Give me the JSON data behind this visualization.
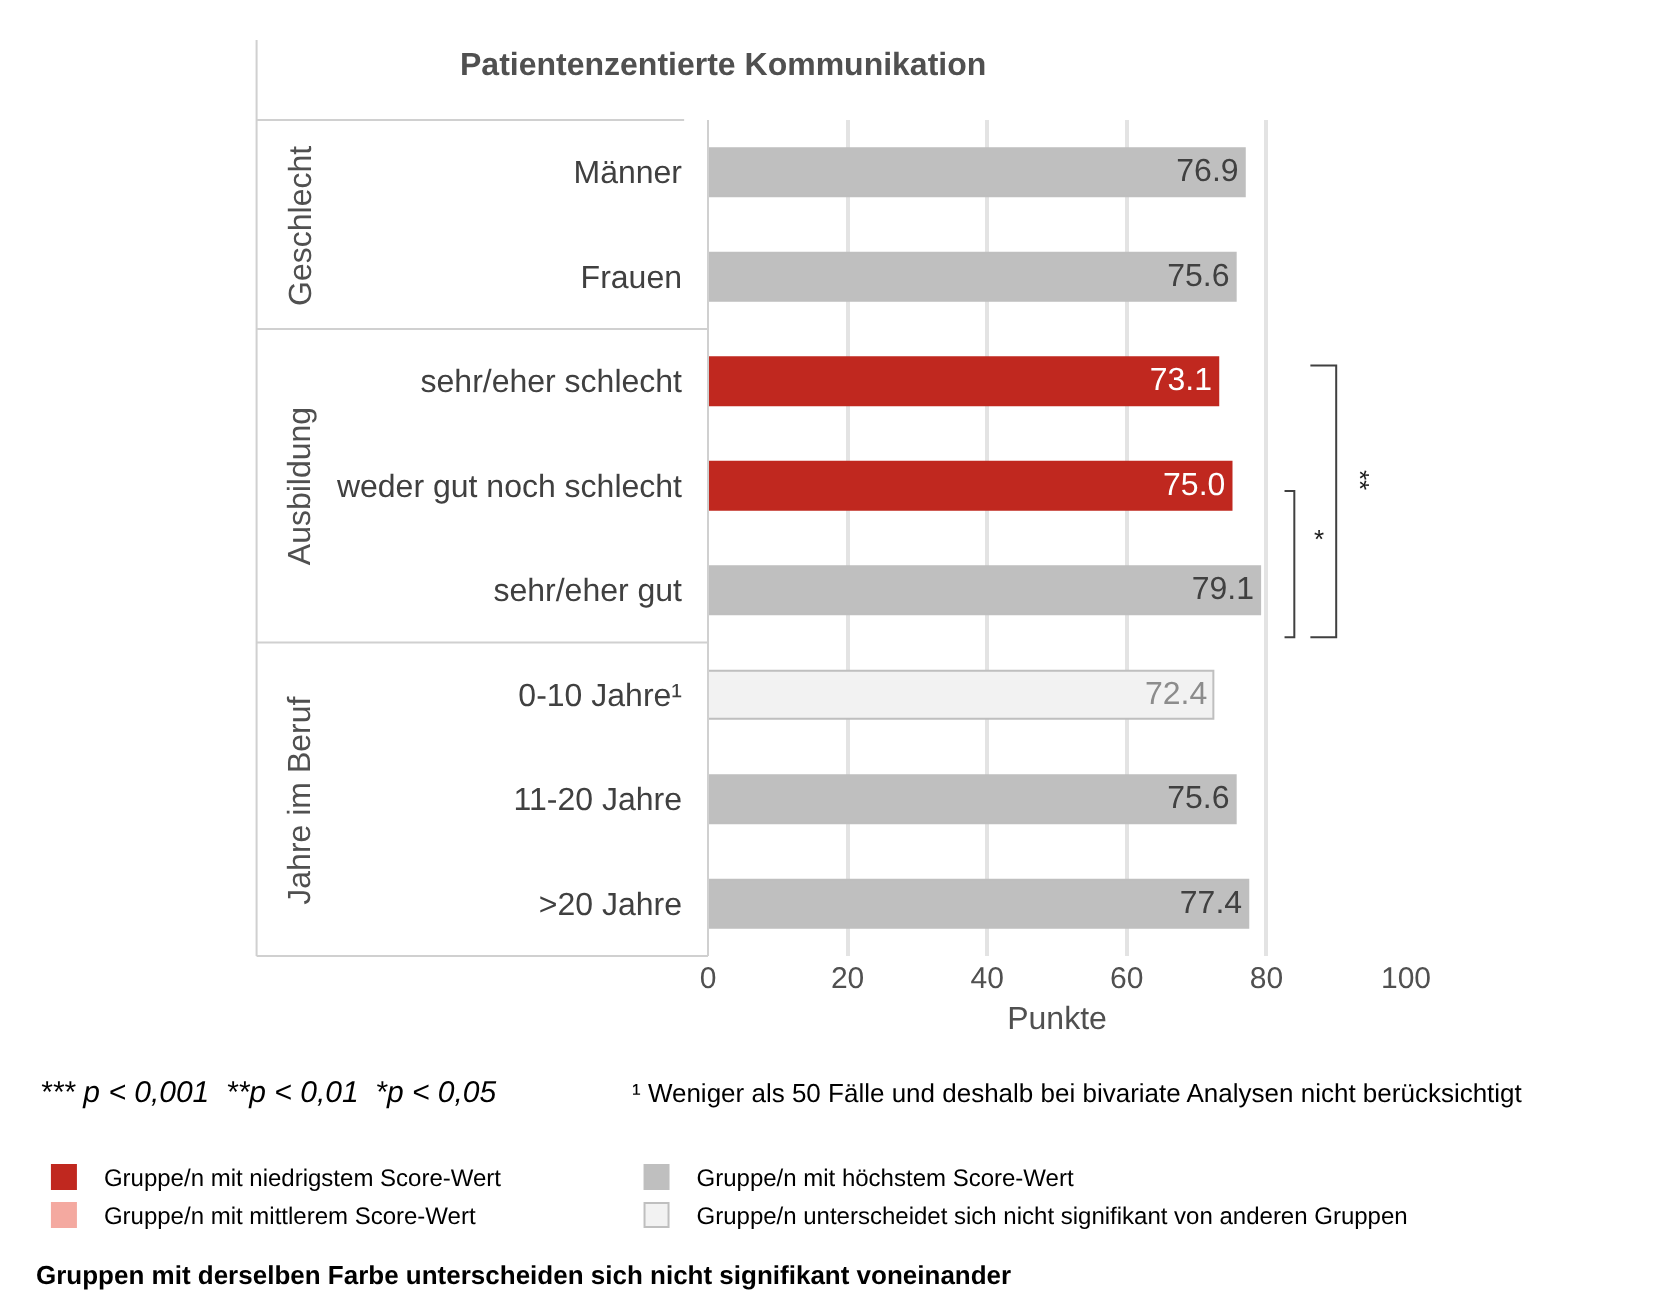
{
  "chart_data": {
    "type": "bar",
    "orientation": "horizontal",
    "title": "Patientenzentierte Kommunikation",
    "xlabel": "Punkte",
    "categories": [
      "Männer",
      "Frauen",
      "sehr/eher schlecht",
      "weder gut noch schlecht",
      "sehr/eher gut",
      "0-10 Jahre¹",
      "11-20 Jahre",
      ">20 Jahre"
    ],
    "series": [
      {
        "name": "Gruppe/n mit niedrigstem Score-Wert",
        "color": "#c0281f",
        "values": [
          null,
          null,
          73.1,
          75.0,
          null,
          null,
          null,
          null
        ],
        "value_labels": [
          null,
          null,
          "73.1",
          "75.0",
          null,
          null,
          null,
          null
        ]
      },
      {
        "name": "Gruppe/n mit höchstem Score-Wert",
        "color": "#bfbfbf",
        "values": [
          76.9,
          75.6,
          null,
          null,
          79.1,
          null,
          75.6,
          77.4
        ]
      },
      {
        "name": "Gruppe/n mit mittlerem Score-Wert",
        "color": "#f4a9a0",
        "values": [
          null,
          null,
          null,
          null,
          null,
          null,
          null,
          null
        ]
      },
      {
        "name": "Gruppe/n unterscheidet sich nicht signifikant von anderen Gruppen",
        "color": "#f2f2f2",
        "values": [
          null,
          null,
          null,
          null,
          null,
          72.4,
          null,
          null
        ]
      }
    ],
    "xlim": [
      0,
      100
    ],
    "xticks": [
      0,
      20,
      40,
      60,
      80,
      100
    ],
    "grid": "x",
    "data_labels": true,
    "legend": "bottom",
    "annotations": [
      "Geschlecht",
      "Ausbildung",
      "Jahre im Beruf",
      "**",
      "*",
      "*** p < 0,001  **p < 0,01  *p < 0,05",
      "¹ Weniger als 50 Fälle und deshalb bei bivariate Analysen nicht berücksichtigt",
      "Gruppen mit derselben Farbe unterscheiden sich nicht signifikant voneinander"
    ]
  }
}
